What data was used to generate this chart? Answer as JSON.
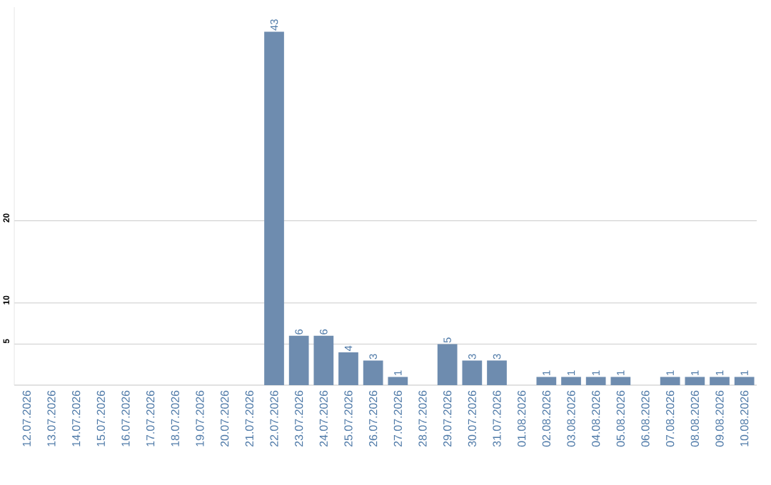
{
  "chart_data": {
    "type": "bar",
    "categories": [
      "12.07.2026",
      "13.07.2026",
      "14.07.2026",
      "15.07.2026",
      "16.07.2026",
      "17.07.2026",
      "18.07.2026",
      "19.07.2026",
      "20.07.2026",
      "21.07.2026",
      "22.07.2026",
      "23.07.2026",
      "24.07.2026",
      "25.07.2026",
      "26.07.2026",
      "27.07.2026",
      "28.07.2026",
      "29.07.2026",
      "30.07.2026",
      "31.07.2026",
      "01.08.2026",
      "02.08.2026",
      "03.08.2026",
      "04.08.2026",
      "05.08.2026",
      "06.08.2026",
      "07.08.2026",
      "08.08.2026",
      "09.08.2026",
      "10.08.2026"
    ],
    "values": [
      0,
      0,
      0,
      0,
      0,
      0,
      0,
      0,
      0,
      0,
      43,
      6,
      6,
      4,
      3,
      1,
      0,
      5,
      3,
      3,
      0,
      1,
      1,
      1,
      1,
      0,
      1,
      1,
      1,
      1
    ],
    "value_labels": [
      null,
      null,
      null,
      null,
      null,
      null,
      null,
      null,
      null,
      null,
      "43",
      "6",
      "6",
      "4",
      "3",
      "1",
      null,
      "5",
      "3",
      "3",
      null,
      "1",
      "1",
      "1",
      "1",
      null,
      "1",
      "1",
      "1",
      "1"
    ],
    "color": "#6e8caf",
    "ylim": [
      0,
      46
    ],
    "yticks": [
      5,
      10,
      20
    ],
    "grid": "y"
  }
}
